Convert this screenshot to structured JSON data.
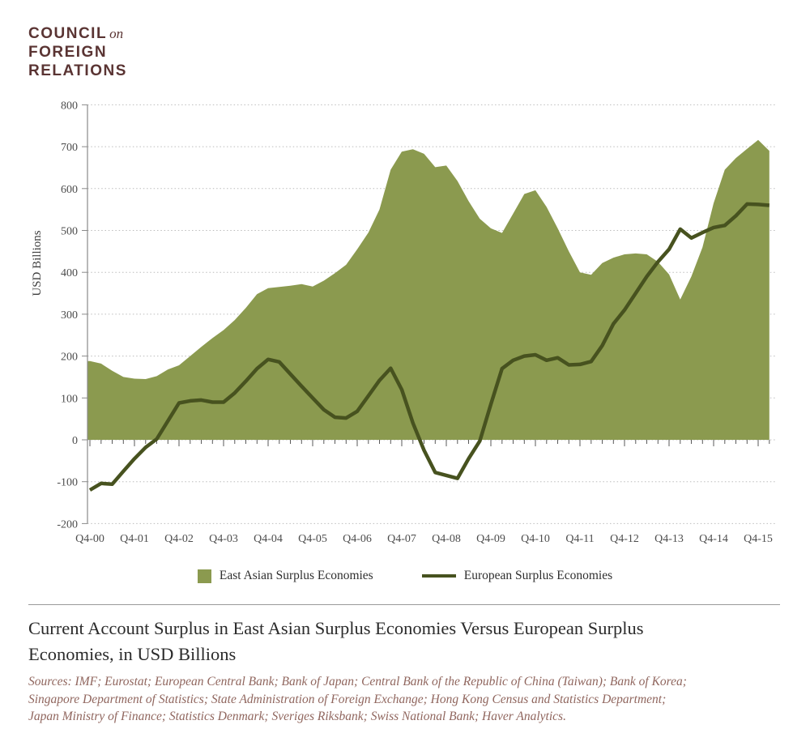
{
  "logo": {
    "line1": "COUNCIL",
    "on": "on",
    "line2": "FOREIGN",
    "line3": "RELATIONS"
  },
  "chart": {
    "y_axis_label": "USD Billions",
    "y_ticks": [
      800,
      700,
      600,
      500,
      400,
      300,
      200,
      100,
      0,
      -100,
      -200
    ],
    "x_tick_labels": [
      "Q4-00",
      "Q4-01",
      "Q4-02",
      "Q4-03",
      "Q4-04",
      "Q4-05",
      "Q4-06",
      "Q4-07",
      "Q4-08",
      "Q4-09",
      "Q4-10",
      "Q4-11",
      "Q4-12",
      "Q4-13",
      "Q4-14",
      "Q4-15"
    ]
  },
  "legend": {
    "area_label": "East Asian Surplus Economies",
    "line_label": "European Surplus Economies"
  },
  "title_lines": [
    "Current Account Surplus in East Asian Surplus Economies Versus European Surplus",
    "Economies, in USD Billions"
  ],
  "sources_lines": [
    "Sources: IMF; Eurostat; European Central Bank; Bank of Japan; Central Bank of the Republic of China (Taiwan); Bank of Korea;",
    "Singapore Department of Statistics; State Administration of Foreign Exchange;  Hong Kong Census and Statistics Department;",
    "Japan Ministry of Finance; Statistics Denmark;  Sveriges Riksbank;  Swiss National Bank; Haver Analytics."
  ],
  "colors": {
    "area": "#8b9a4f",
    "line": "#47521f",
    "grid": "#bcbcbc",
    "axis": "#8a8a8a",
    "tick": "#5a5a5a",
    "axis_text": "#4d4d4d",
    "logo_text": "#5a3433",
    "title_text": "#2b2b2b",
    "sources_text": "#90665e",
    "separator": "#9a9a9a"
  },
  "chart_data": {
    "type": "area",
    "title": "Current Account Surplus in East Asian Surplus Economies Versus European Surplus Economies, in USD Billions",
    "xlabel": "",
    "ylabel": "USD Billions",
    "ylim": [
      -200,
      800
    ],
    "grid": "horizontal-dotted",
    "legend_position": "bottom-center",
    "x_quarters": [
      "Q4-00",
      "Q1-01",
      "Q2-01",
      "Q3-01",
      "Q4-01",
      "Q1-02",
      "Q2-02",
      "Q3-02",
      "Q4-02",
      "Q1-03",
      "Q2-03",
      "Q3-03",
      "Q4-03",
      "Q1-04",
      "Q2-04",
      "Q3-04",
      "Q4-04",
      "Q1-05",
      "Q2-05",
      "Q3-05",
      "Q4-05",
      "Q1-06",
      "Q2-06",
      "Q3-06",
      "Q4-06",
      "Q1-07",
      "Q2-07",
      "Q3-07",
      "Q4-07",
      "Q1-08",
      "Q2-08",
      "Q3-08",
      "Q4-08",
      "Q1-09",
      "Q2-09",
      "Q3-09",
      "Q4-09",
      "Q1-10",
      "Q2-10",
      "Q3-10",
      "Q4-10",
      "Q1-11",
      "Q2-11",
      "Q3-11",
      "Q4-11",
      "Q1-12",
      "Q2-12",
      "Q3-12",
      "Q4-12",
      "Q1-13",
      "Q2-13",
      "Q3-13",
      "Q4-13",
      "Q1-14",
      "Q2-14",
      "Q3-14",
      "Q4-14",
      "Q1-15",
      "Q2-15",
      "Q3-15",
      "Q4-15",
      "Q1-16"
    ],
    "series": [
      {
        "name": "East Asian Surplus Economies",
        "style": "area",
        "color": "#8b9a4f",
        "values": [
          188,
          182,
          165,
          150,
          146,
          145,
          152,
          168,
          178,
          200,
          222,
          243,
          262,
          286,
          315,
          348,
          362,
          365,
          368,
          372,
          366,
          380,
          398,
          418,
          455,
          495,
          550,
          645,
          688,
          694,
          683,
          651,
          655,
          618,
          570,
          528,
          505,
          494,
          540,
          587,
          596,
          556,
          505,
          450,
          400,
          394,
          422,
          435,
          443,
          445,
          443,
          425,
          395,
          335,
          390,
          460,
          565,
          645,
          673,
          695,
          716,
          690
        ]
      },
      {
        "name": "European Surplus Economies",
        "style": "line",
        "color": "#47521f",
        "values": [
          -120,
          -104,
          -106,
          -75,
          -45,
          -18,
          2,
          45,
          88,
          93,
          95,
          90,
          90,
          112,
          140,
          170,
          192,
          186,
          157,
          128,
          100,
          72,
          54,
          52,
          68,
          105,
          142,
          171,
          120,
          40,
          -25,
          -78,
          -85,
          -92,
          -45,
          -3,
          85,
          170,
          190,
          200,
          203,
          190,
          196,
          179,
          180,
          187,
          225,
          277,
          310,
          350,
          390,
          425,
          455,
          503,
          482,
          495,
          507,
          512,
          535,
          563,
          562,
          560
        ]
      }
    ]
  }
}
